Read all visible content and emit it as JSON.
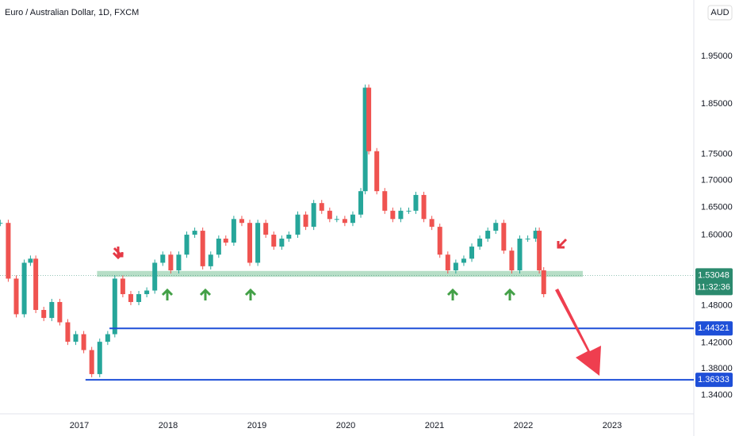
{
  "chart_data": {
    "type": "candlestick",
    "title": "Euro / Australian Dollar, 1D, FXCM",
    "currency": "AUD",
    "log_scale": true,
    "up_color": "#26a69a",
    "down_color": "#ef5350",
    "x": [
      2016.11,
      2016.2,
      2016.29,
      2016.38,
      2016.45,
      2016.51,
      2016.6,
      2016.69,
      2016.78,
      2016.87,
      2016.96,
      2017.05,
      2017.14,
      2017.23,
      2017.32,
      2017.4,
      2017.49,
      2017.58,
      2017.67,
      2017.76,
      2017.85,
      2017.94,
      2018.03,
      2018.12,
      2018.21,
      2018.3,
      2018.39,
      2018.48,
      2018.57,
      2018.65,
      2018.74,
      2018.83,
      2018.92,
      2019.01,
      2019.1,
      2019.19,
      2019.28,
      2019.36,
      2019.46,
      2019.55,
      2019.64,
      2019.73,
      2019.82,
      2019.9,
      2019.99,
      2020.08,
      2020.17,
      2020.22,
      2020.26,
      2020.35,
      2020.44,
      2020.53,
      2020.62,
      2020.71,
      2020.79,
      2020.88,
      2020.97,
      2021.06,
      2021.15,
      2021.24,
      2021.33,
      2021.42,
      2021.51,
      2021.6,
      2021.69,
      2021.78,
      2021.87,
      2021.96,
      2022.05,
      2022.14,
      2022.18,
      2022.23
    ],
    "values": [
      1.622,
      1.525,
      1.466,
      1.552,
      1.559,
      1.473,
      1.46,
      1.486,
      1.453,
      1.422,
      1.434,
      1.409,
      1.372,
      1.422,
      1.434,
      1.525,
      1.499,
      1.486,
      1.499,
      1.505,
      1.552,
      1.566,
      1.539,
      1.566,
      1.601,
      1.608,
      1.546,
      1.566,
      1.594,
      1.587,
      1.629,
      1.622,
      1.552,
      1.622,
      1.601,
      1.58,
      1.594,
      1.601,
      1.637,
      1.615,
      1.658,
      1.644,
      1.629,
      1.629,
      1.622,
      1.637,
      1.68,
      1.884,
      1.756,
      1.68,
      1.644,
      1.629,
      1.644,
      1.644,
      1.673,
      1.629,
      1.615,
      1.566,
      1.539,
      1.552,
      1.559,
      1.58,
      1.594,
      1.608,
      1.622,
      1.573,
      1.539,
      1.594,
      1.594,
      1.608,
      1.539,
      1.499
    ],
    "xlim": [
      2016.107,
      2023.92
    ],
    "ylim": [
      1.313,
      2.076
    ],
    "xticks": [
      2017,
      2018,
      2019,
      2020,
      2021,
      2022,
      2023
    ],
    "yticks": [
      {
        "value": 1.95,
        "label": "1.95000"
      },
      {
        "value": 1.85,
        "label": "1.85000"
      },
      {
        "value": 1.75,
        "label": "1.75000"
      },
      {
        "value": 1.7,
        "label": "1.70000"
      },
      {
        "value": 1.65,
        "label": "1.65000"
      },
      {
        "value": 1.6,
        "label": "1.60000"
      },
      {
        "value": 1.48,
        "label": "1.48000"
      },
      {
        "value": 1.42,
        "label": "1.42000"
      },
      {
        "value": 1.38,
        "label": "1.38000"
      },
      {
        "value": 1.34,
        "label": "1.34000"
      }
    ],
    "zone": {
      "low": 1.528,
      "high": 1.538,
      "from": 2017.2,
      "to": 2022.67,
      "color": "#a5d6b9"
    },
    "levels": [
      {
        "value": 1.44321,
        "label": "1.44321",
        "from": 2017.34,
        "color": "#1e4fd8"
      },
      {
        "value": 1.36333,
        "label": "1.36333",
        "from": 2017.07,
        "color": "#1e4fd8"
      }
    ],
    "last_price": {
      "value": 1.53048,
      "label": "1.53048",
      "countdown": "11:32:36",
      "color": "#2b8a6e"
    }
  }
}
